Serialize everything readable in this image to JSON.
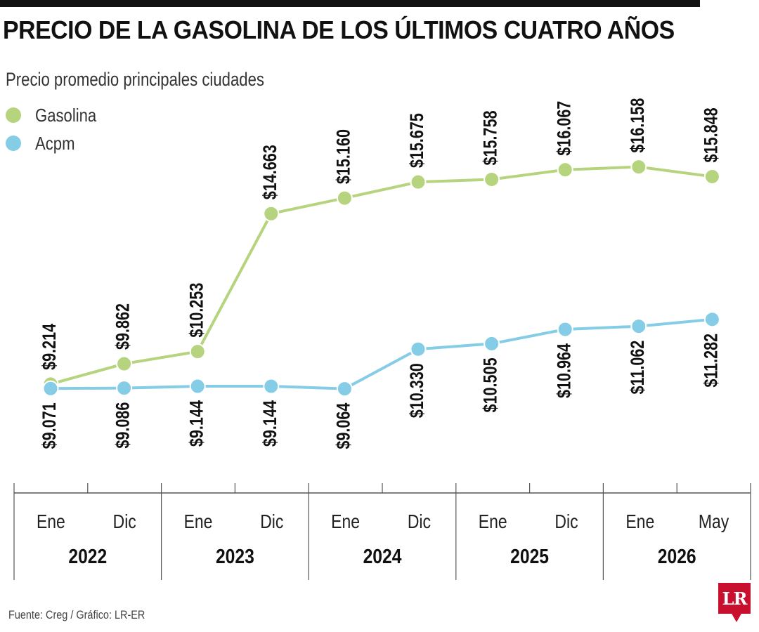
{
  "header": {
    "title": "PRECIO DE LA GASOLINA DE LOS ÚLTIMOS CUATRO AÑOS",
    "subtitle": "Precio promedio principales ciudades"
  },
  "footer": {
    "source": "Fuente: Creg / Gráfico: LR-ER",
    "logo_text": "LR"
  },
  "colors": {
    "gasolina": "#b5d47d",
    "acpm": "#85cde6",
    "axis": "#555555",
    "text": "#222222",
    "brand": "#c8102e"
  },
  "chart_data": {
    "type": "line",
    "title": "PRECIO DE LA GASOLINA DE LOS ÚLTIMOS CUATRO AÑOS",
    "subtitle": "Precio promedio principales ciudades",
    "categories": [
      "Ene",
      "Dic",
      "Ene",
      "Dic",
      "Ene",
      "Dic",
      "Ene",
      "Dic",
      "Ene",
      "May"
    ],
    "years": [
      "2022",
      "2023",
      "2024",
      "2025",
      "2026"
    ],
    "ylim": [
      8000,
      17000
    ],
    "grid": false,
    "legend_position": "top-left",
    "series": [
      {
        "name": "Gasolina",
        "color": "#b5d47d",
        "values": [
          9214,
          9862,
          10253,
          14663,
          15160,
          15675,
          15758,
          16067,
          16158,
          15848
        ],
        "labels": [
          "$9.214",
          "$9.862",
          "$10.253",
          "$14.663",
          "$15.160",
          "$15.675",
          "$15.758",
          "$16.067",
          "$16.158",
          "$15.848"
        ]
      },
      {
        "name": "Acpm",
        "color": "#85cde6",
        "values": [
          9071,
          9086,
          9144,
          9144,
          9064,
          10330,
          10505,
          10964,
          11062,
          11282
        ],
        "labels": [
          "$9.071",
          "$9.086",
          "$9.144",
          "$9.144",
          "$9.064",
          "$10.330",
          "$10.505",
          "$10.964",
          "$11.062",
          "$11.282"
        ]
      }
    ]
  }
}
